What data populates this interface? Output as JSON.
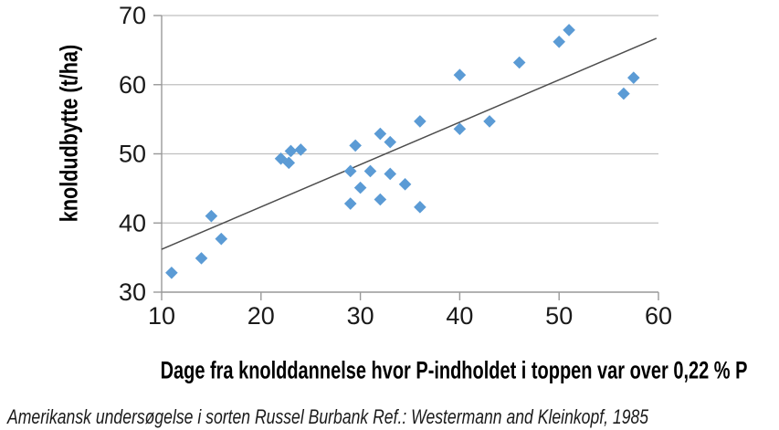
{
  "chart_data": {
    "type": "scatter",
    "xlabel": "Dage fra knolddannelse hvor P-indholdet i toppen var over  0,22 % P",
    "ylabel": "knoldudbytte (t/ha)",
    "xlim": [
      10,
      60
    ],
    "ylim": [
      30,
      70
    ],
    "xticks": [
      10,
      20,
      30,
      40,
      50,
      60
    ],
    "yticks": [
      30,
      40,
      50,
      60,
      70
    ],
    "grid": "horizontal-only",
    "legend": "none",
    "marker": "diamond",
    "marker_color": "#5B9BD5",
    "gridline_color": "#bfbfbf",
    "axis_color": "#999999",
    "trendline_color": "#4d4d4d",
    "points": [
      [
        11,
        32.8
      ],
      [
        14,
        34.9
      ],
      [
        15,
        41.0
      ],
      [
        16,
        37.7
      ],
      [
        22,
        49.3
      ],
      [
        22.8,
        48.7
      ],
      [
        23,
        50.4
      ],
      [
        24,
        50.6
      ],
      [
        29,
        42.8
      ],
      [
        29,
        47.5
      ],
      [
        29.5,
        51.2
      ],
      [
        30,
        45.1
      ],
      [
        31,
        47.5
      ],
      [
        32,
        43.4
      ],
      [
        32,
        52.9
      ],
      [
        33,
        51.7
      ],
      [
        33,
        47.1
      ],
      [
        34.5,
        45.6
      ],
      [
        36,
        42.3
      ],
      [
        36,
        54.7
      ],
      [
        40,
        53.6
      ],
      [
        40,
        61.4
      ],
      [
        43,
        54.7
      ],
      [
        46,
        63.2
      ],
      [
        50,
        66.2
      ],
      [
        51,
        67.9
      ],
      [
        56.5,
        58.7
      ],
      [
        57.5,
        61.0
      ]
    ],
    "trendline": {
      "x1": 10,
      "y1": 36.2,
      "x2": 59.8,
      "y2": 66.7
    }
  },
  "caption": "Amerikansk undersøgelse i sorten Russel Burbank Ref.: Westermann and Kleinkopf, 1985"
}
